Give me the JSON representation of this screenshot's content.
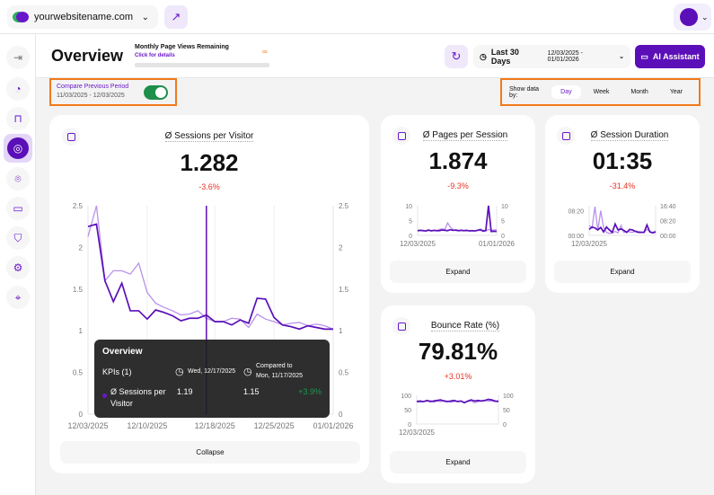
{
  "topbar": {
    "site": "yourwebsitename.com",
    "icons": {
      "site": "globe-icon",
      "external": "external-link-icon",
      "avatar": "avatar"
    }
  },
  "sidebar": {
    "items": [
      "collapse-icon",
      "pie-chart-icon",
      "bag-icon",
      "analytics-icon",
      "scan-icon",
      "chat-icon",
      "shield-icon",
      "gear-icon",
      "location-icon"
    ],
    "active": 3
  },
  "header": {
    "title": "Overview",
    "page_views_label": "Monthly Page Views Remaining",
    "details_link": "Click for details",
    "remaining": "∞",
    "range_label": "Last 30 Days",
    "range_dates": "12/03/2025 - 01/01/2026",
    "ai_label": "AI Assistant"
  },
  "compare": {
    "label": "Compare Previous Period",
    "dates": "11/03/2025 - 12/03/2025",
    "enabled": true
  },
  "showby": {
    "label": "Show data by:",
    "options": [
      "Day",
      "Week",
      "Month",
      "Year"
    ],
    "selected": "Day"
  },
  "colors": {
    "accent": "#5b0fb8",
    "previous": "#b892ea",
    "negative": "#e53222",
    "positive": "#1d9a52",
    "toggle": "#1d8f4a"
  },
  "main": {
    "title": "Ø Sessions per Visitor",
    "value": "1.282",
    "delta": "-3.6%",
    "button": "Collapse"
  },
  "tooltip": {
    "title": "Overview",
    "kpis": "KPIs  (1)",
    "date": "Wed, 12/17/2025",
    "compared_label": "Compared to",
    "compared_date": "Mon, 11/17/2025",
    "metric": "Ø Sessions per Visitor",
    "current": "1.19",
    "previous": "1.15",
    "change": "+3.9%"
  },
  "cards": [
    {
      "title": "Ø Pages per Session",
      "value": "1.874",
      "delta": "-9.3%",
      "button": "Expand"
    },
    {
      "title": "Ø Session Duration",
      "value": "01:35",
      "delta": "-31.4%",
      "button": "Expand"
    },
    {
      "title": "Bounce Rate (%)",
      "value": "79.81%",
      "delta": "+3.01%",
      "button": "Expand"
    }
  ],
  "chart_data": [
    {
      "type": "line",
      "title": "Ø Sessions per Visitor",
      "x_ticks": [
        "12/03/2025",
        "12/10/2025",
        "12/18/2025",
        "12/25/2025",
        "01/01/2026"
      ],
      "y_ticks": [
        "0",
        "0.5",
        "1",
        "1.5",
        "2",
        "2.5"
      ],
      "ylim": [
        0,
        2.5
      ],
      "hover_index": 14,
      "series": [
        {
          "values": [
            2.25,
            2.28,
            1.6,
            1.35,
            1.57,
            1.24,
            1.24,
            1.14,
            1.25,
            1.22,
            1.18,
            1.12,
            1.15,
            1.15,
            1.19,
            1.11,
            1.11,
            1.07,
            1.13,
            1.09,
            1.39,
            1.38,
            1.16,
            1.07,
            1.05,
            1.02,
            1.06,
            1.04,
            1.02,
            1.02
          ]
        },
        {
          "values": [
            2.13,
            2.5,
            1.6,
            1.72,
            1.72,
            1.68,
            1.81,
            1.46,
            1.33,
            1.28,
            1.24,
            1.19,
            1.2,
            1.24,
            1.15,
            1.11,
            1.11,
            1.15,
            1.14,
            1.04,
            1.2,
            1.14,
            1.11,
            1.07,
            1.09,
            1.1,
            1.06,
            1.08,
            1.06,
            1.02
          ]
        }
      ]
    },
    {
      "type": "line",
      "x_ticks": [
        "12/03/2025",
        "01/01/2026"
      ],
      "y_ticks": [
        "0",
        "5",
        "10"
      ],
      "y2_ticks": [
        "0",
        "5",
        "10"
      ],
      "ylim": [
        0,
        10
      ],
      "series": [
        {
          "values": [
            1.6,
            1.7,
            1.6,
            1.5,
            1.8,
            1.5,
            1.7,
            1.6,
            1.6,
            1.8,
            1.7,
            1.6,
            1.9,
            1.7,
            1.8,
            1.6,
            1.7,
            1.6,
            1.7,
            1.5,
            1.6,
            1.5,
            1.7,
            2.0,
            1.4,
            1.6,
            10,
            1.3,
            1.4,
            1.3
          ]
        },
        {
          "values": [
            1.5,
            1.6,
            1.7,
            1.4,
            1.6,
            1.7,
            1.6,
            1.5,
            2.0,
            2.2,
            2.0,
            4.2,
            2.8,
            1.9,
            1.6,
            1.5,
            1.7,
            1.6,
            1.5,
            1.7,
            1.6,
            1.5,
            1.7,
            1.6,
            1.8,
            1.5,
            2.0,
            1.7,
            1.8,
            1.9
          ]
        }
      ]
    },
    {
      "type": "line",
      "x_ticks": [
        "12/03/2025"
      ],
      "y_ticks": [
        "00:00",
        "08:20"
      ],
      "y2_ticks": [
        "00:00",
        "08:20",
        "16:40"
      ],
      "ylim": [
        0,
        600
      ],
      "series": [
        {
          "values": [
            120,
            170,
            150,
            110,
            160,
            70,
            170,
            110,
            60,
            230,
            110,
            130,
            100,
            60,
            120,
            110,
            80,
            60,
            60,
            60,
            210,
            70,
            50,
            70
          ]
        },
        {
          "values": [
            200,
            150,
            580,
            100,
            500,
            160,
            60,
            40,
            50,
            80,
            50,
            200,
            60,
            80,
            70,
            60,
            90,
            80,
            70,
            60,
            120,
            80,
            60,
            90
          ]
        }
      ]
    },
    {
      "type": "line",
      "x_ticks": [
        "12/03/2025"
      ],
      "y_ticks": [
        "0",
        "50",
        "100"
      ],
      "y2_ticks": [
        "0",
        "50",
        "100"
      ],
      "ylim": [
        0,
        100
      ],
      "series": [
        {
          "values": [
            78,
            79,
            78,
            82,
            78,
            80,
            82,
            84,
            80,
            78,
            80,
            82,
            78,
            80,
            74,
            80,
            84,
            80,
            82,
            80,
            82,
            86,
            84,
            80,
            78
          ]
        },
        {
          "values": [
            80,
            82,
            78,
            80,
            82,
            76,
            80,
            78,
            82,
            80,
            76,
            78,
            80,
            80,
            76,
            78,
            80,
            74,
            78,
            80,
            82,
            80,
            80,
            78,
            82
          ]
        }
      ]
    }
  ]
}
